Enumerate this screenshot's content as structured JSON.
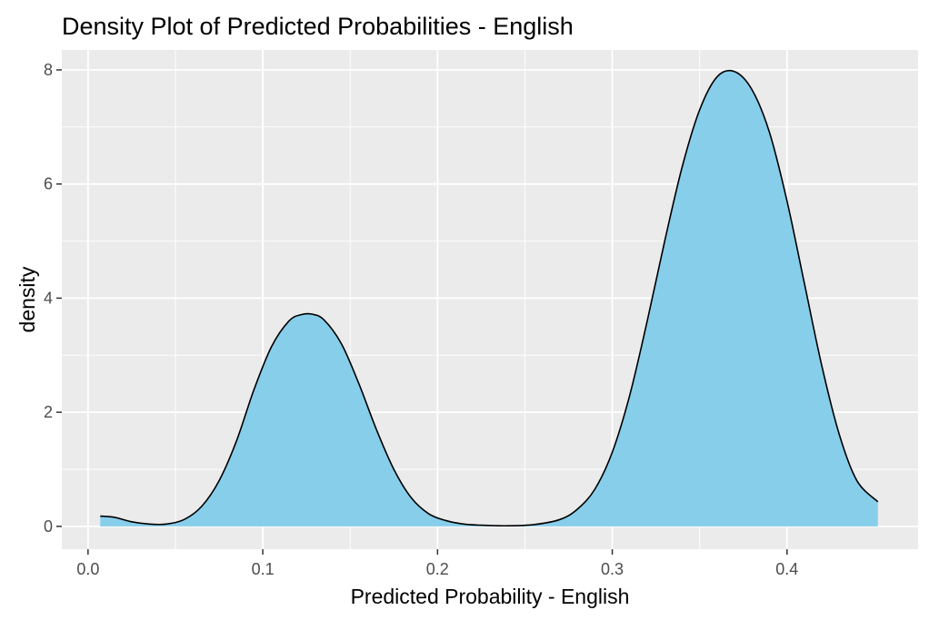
{
  "chart_data": {
    "type": "area",
    "title": "Density Plot of Predicted Probabilities - English",
    "xlabel": "Predicted Probability - English",
    "ylabel": "density",
    "xlim": [
      -0.015,
      0.475
    ],
    "ylim": [
      -0.4,
      8.35
    ],
    "x_ticks": [
      0.0,
      0.1,
      0.2,
      0.3,
      0.4
    ],
    "x_tick_labels": [
      "0.0",
      "0.1",
      "0.2",
      "0.3",
      "0.4"
    ],
    "y_ticks": [
      0,
      2,
      4,
      6,
      8
    ],
    "y_tick_labels": [
      "0",
      "2",
      "4",
      "6",
      "8"
    ],
    "grid": true,
    "colors": {
      "panel": "#ebebeb",
      "grid": "#ffffff",
      "fill": "#87ceeb",
      "outline": "#000000"
    },
    "series": [
      {
        "x": [
          0.007,
          0.015,
          0.025,
          0.035,
          0.045,
          0.055,
          0.065,
          0.075,
          0.085,
          0.095,
          0.105,
          0.115,
          0.122,
          0.128,
          0.135,
          0.145,
          0.155,
          0.165,
          0.175,
          0.185,
          0.195,
          0.205,
          0.215,
          0.225,
          0.24,
          0.255,
          0.27,
          0.28,
          0.29,
          0.3,
          0.31,
          0.32,
          0.33,
          0.34,
          0.35,
          0.36,
          0.37,
          0.38,
          0.39,
          0.4,
          0.41,
          0.42,
          0.43,
          0.44,
          0.452
        ],
        "y": [
          0.18,
          0.16,
          0.08,
          0.04,
          0.04,
          0.12,
          0.35,
          0.8,
          1.5,
          2.4,
          3.15,
          3.6,
          3.71,
          3.72,
          3.62,
          3.2,
          2.5,
          1.7,
          1.0,
          0.5,
          0.22,
          0.1,
          0.04,
          0.02,
          0.01,
          0.03,
          0.12,
          0.3,
          0.65,
          1.3,
          2.3,
          3.6,
          5.0,
          6.3,
          7.3,
          7.88,
          7.97,
          7.65,
          6.9,
          5.7,
          4.25,
          2.8,
          1.6,
          0.8,
          0.43
        ]
      }
    ]
  }
}
